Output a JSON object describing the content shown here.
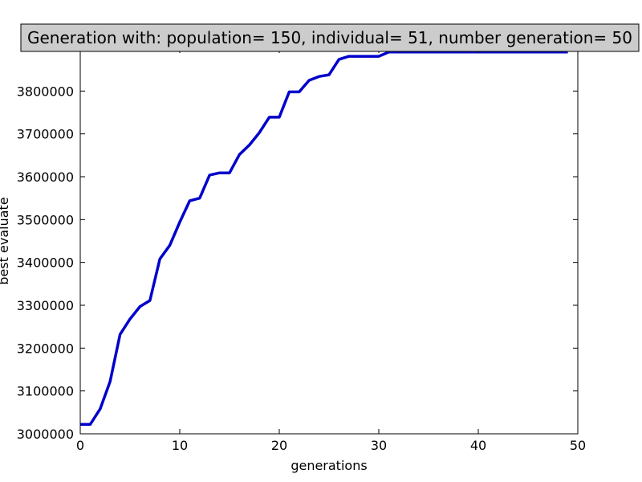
{
  "chart_data": {
    "type": "line",
    "title": "Generation with: population= 150, individual= 51, number generation= 50",
    "xlabel": "generations",
    "ylabel": "best evaluate",
    "xlim": [
      0,
      50
    ],
    "ylim": [
      3000000,
      3900000
    ],
    "xticks": [
      0,
      10,
      20,
      30,
      40,
      50
    ],
    "yticks": [
      3000000,
      3100000,
      3200000,
      3300000,
      3400000,
      3500000,
      3600000,
      3700000,
      3800000
    ],
    "grid": false,
    "series": [
      {
        "color": "#0000cc",
        "x": [
          0,
          1,
          2,
          3,
          4,
          5,
          6,
          7,
          8,
          9,
          10,
          11,
          12,
          13,
          14,
          15,
          16,
          17,
          18,
          19,
          20,
          21,
          22,
          23,
          24,
          25,
          26,
          27,
          28,
          29,
          30,
          31,
          32,
          33,
          34,
          35,
          36,
          37,
          38,
          39,
          40,
          41,
          42,
          43,
          44,
          45,
          46,
          47,
          48,
          49
        ],
        "y": [
          3022000,
          3022000,
          3058000,
          3122000,
          3232000,
          3268000,
          3297000,
          3311000,
          3408000,
          3440000,
          3494000,
          3544000,
          3550000,
          3604000,
          3609000,
          3609000,
          3652000,
          3674000,
          3703000,
          3739000,
          3739000,
          3798000,
          3798000,
          3825000,
          3834000,
          3838000,
          3874000,
          3881000,
          3881000,
          3881000,
          3881000,
          3891000,
          3891000,
          3891000,
          3891000,
          3891000,
          3891000,
          3891000,
          3891000,
          3891000,
          3891000,
          3891000,
          3891000,
          3891000,
          3891000,
          3891000,
          3891000,
          3891000,
          3891000,
          3891000
        ]
      }
    ]
  }
}
